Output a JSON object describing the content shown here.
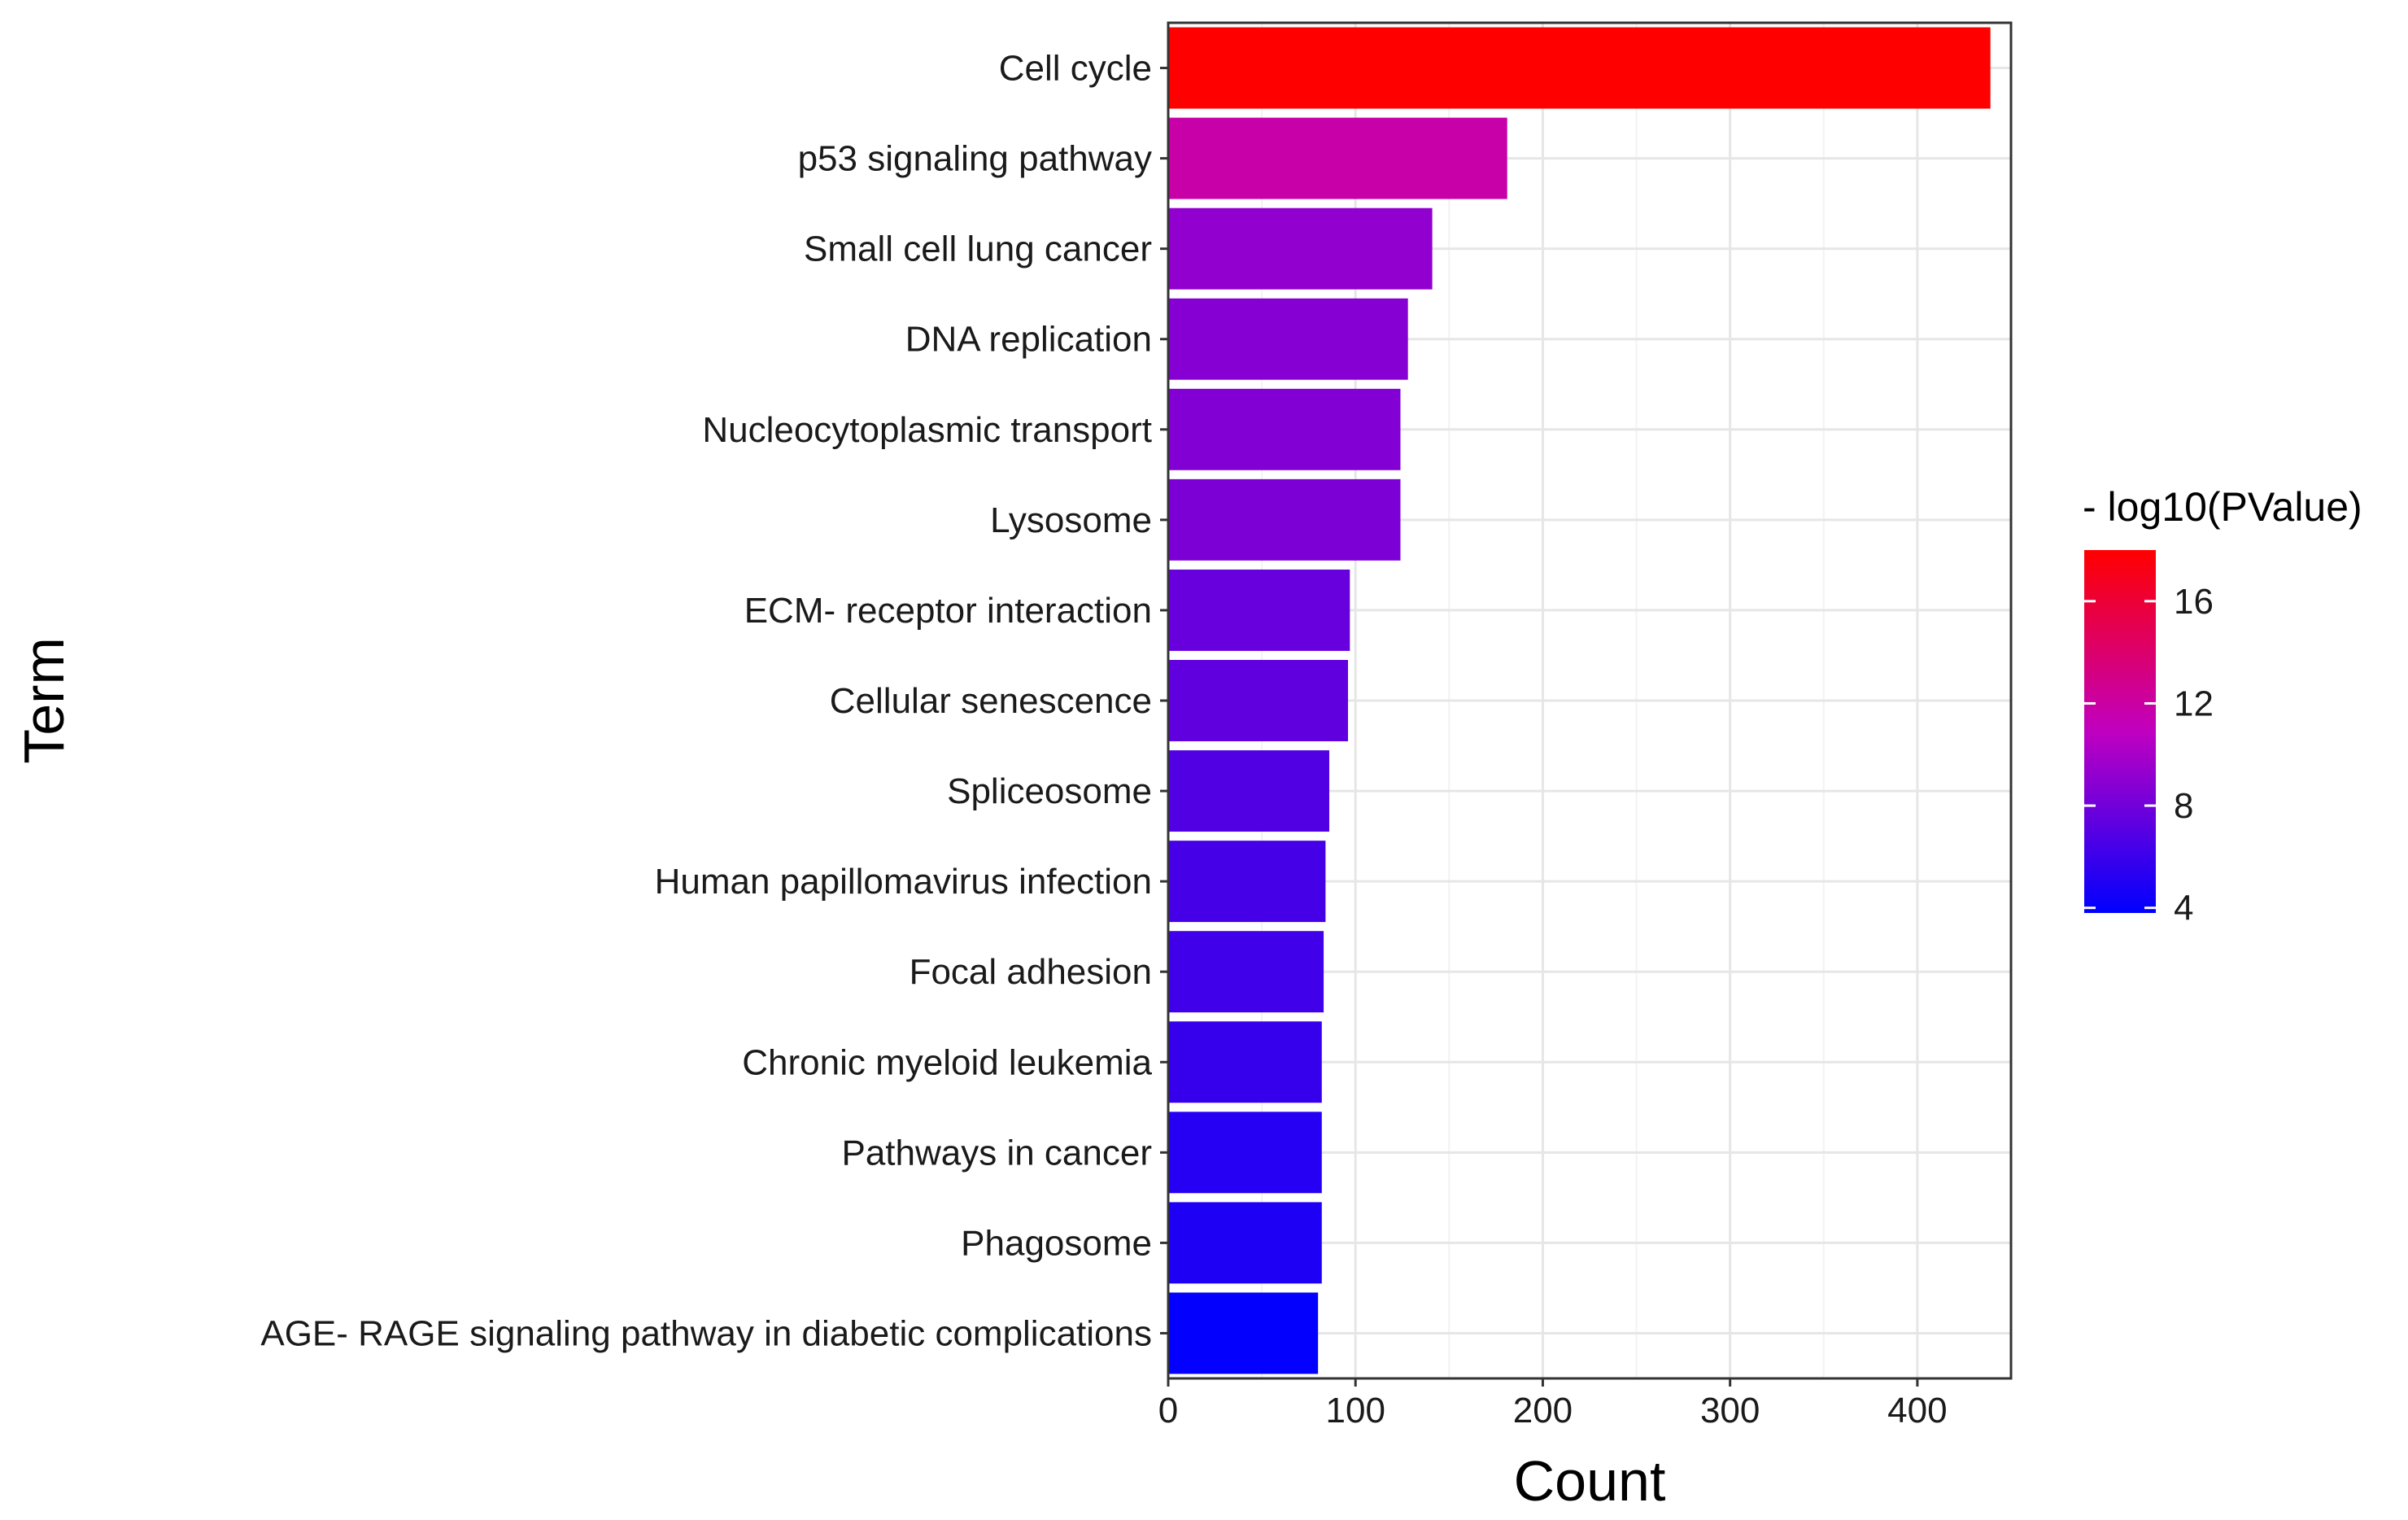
{
  "chart_data": {
    "type": "bar",
    "orientation": "horizontal",
    "title": "",
    "xlabel": "Count",
    "ylabel": "Term",
    "xlim": [
      0,
      450
    ],
    "x_ticks": [
      0,
      100,
      200,
      300,
      400
    ],
    "grid": true,
    "categories": [
      "Cell cycle",
      "p53 signaling pathway",
      "Small cell lung cancer",
      "DNA replication",
      "Nucleocytoplasmic transport",
      "Lysosome",
      "ECM- receptor interaction",
      "Cellular senescence",
      "Spliceosome",
      "Human papillomavirus infection",
      "Focal adhesion",
      "Chronic myeloid leukemia",
      "Pathways in cancer",
      "Phagosome",
      "AGE- RAGE signaling pathway in diabetic complications"
    ],
    "values": [
      439,
      181,
      141,
      128,
      124,
      124,
      97,
      96,
      86,
      84,
      83,
      82,
      82,
      82,
      80
    ],
    "color_values": [
      18,
      11.8,
      9.2,
      8.8,
      8.6,
      8.4,
      7.6,
      7.4,
      6.8,
      6.4,
      6.2,
      5.8,
      5.2,
      4.9,
      3.9
    ],
    "legend": {
      "title": "- log10(PValue)",
      "ticks": [
        4,
        8,
        12,
        16
      ],
      "range": [
        3.8,
        18
      ],
      "low_color": "#0000ff",
      "high_color": "#ff0000",
      "placement": "right"
    }
  }
}
